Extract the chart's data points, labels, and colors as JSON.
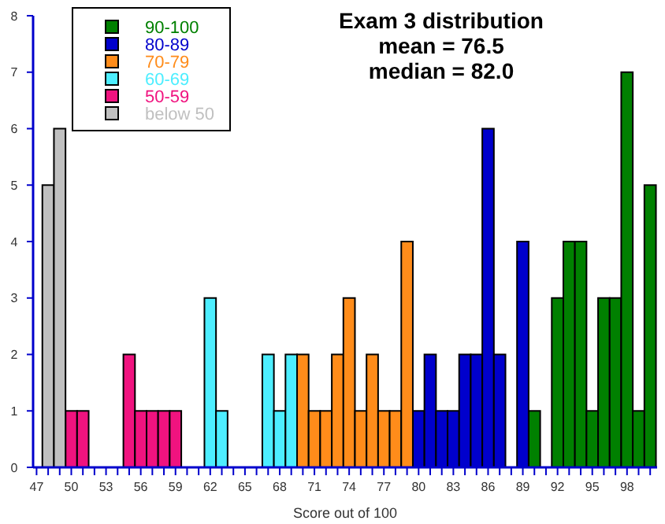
{
  "chart_data": {
    "type": "histogram",
    "title": "Exam 3 distribution",
    "annotations": [
      "mean = 76.5",
      "median = 82.0"
    ],
    "xlabel": "Score out of 100",
    "bins": [
      47.5,
      48.5,
      49.5,
      50.5,
      51.5,
      52.5,
      53.5,
      54.5,
      55.5,
      56.5,
      57.5,
      58.5,
      59.5,
      60.5,
      61.5,
      62.5,
      63.5,
      64.5,
      65.5,
      66.5,
      67.5,
      68.5,
      69.5,
      70.5,
      71.5,
      72.5,
      73.5,
      74.5,
      75.5,
      76.5,
      77.5,
      78.5,
      79.5,
      80.5,
      81.5,
      82.5,
      83.5,
      84.5,
      85.5,
      86.5,
      87.5,
      88.5,
      89.5,
      90.5,
      91.5,
      92.5,
      93.5,
      94.5,
      95.5,
      96.5,
      97.5,
      98.5,
      99.5,
      100.5
    ],
    "series": [
      {
        "name": "90-100",
        "color": "#008000",
        "values": [
          null,
          null,
          null,
          null,
          null,
          null,
          null,
          null,
          null,
          null,
          null,
          null,
          null,
          null,
          null,
          null,
          null,
          null,
          null,
          null,
          null,
          null,
          null,
          null,
          null,
          null,
          null,
          null,
          null,
          null,
          null,
          null,
          null,
          null,
          null,
          null,
          null,
          null,
          null,
          null,
          null,
          null,
          1,
          null,
          3,
          4,
          4,
          1,
          3,
          3,
          7,
          1,
          5
        ]
      },
      {
        "name": "80-89",
        "color": "#0000cc",
        "values": [
          null,
          null,
          null,
          null,
          null,
          null,
          null,
          null,
          null,
          null,
          null,
          null,
          null,
          null,
          null,
          null,
          null,
          null,
          null,
          null,
          null,
          null,
          null,
          null,
          null,
          null,
          null,
          null,
          null,
          null,
          null,
          null,
          1,
          2,
          1,
          1,
          2,
          2,
          6,
          2,
          null,
          4,
          null,
          null,
          null,
          null,
          null,
          null,
          null,
          null,
          null,
          null,
          null
        ]
      },
      {
        "name": "70-79",
        "color": "#ff8c1a",
        "values": [
          null,
          null,
          null,
          null,
          null,
          null,
          null,
          null,
          null,
          null,
          null,
          null,
          null,
          null,
          null,
          null,
          null,
          null,
          null,
          null,
          null,
          null,
          2,
          1,
          1,
          2,
          3,
          1,
          2,
          1,
          1,
          4,
          null,
          null,
          null,
          null,
          null,
          null,
          null,
          null,
          null,
          null,
          null,
          null,
          null,
          null,
          null,
          null,
          null,
          null,
          null,
          null,
          null
        ]
      },
      {
        "name": "60-69",
        "color": "#4deeff",
        "values": [
          null,
          null,
          null,
          null,
          null,
          null,
          null,
          null,
          null,
          null,
          null,
          null,
          null,
          null,
          3,
          1,
          null,
          null,
          null,
          2,
          1,
          2,
          null,
          null,
          null,
          null,
          null,
          null,
          null,
          null,
          null,
          null,
          null,
          null,
          null,
          null,
          null,
          null,
          null,
          null,
          null,
          null,
          null,
          null,
          null,
          null,
          null,
          null,
          null,
          null,
          null,
          null,
          null
        ]
      },
      {
        "name": "50-59",
        "color": "#f0137f",
        "values": [
          null,
          null,
          1,
          1,
          null,
          null,
          null,
          2,
          1,
          1,
          1,
          1,
          null,
          null,
          null,
          null,
          null,
          null,
          null,
          null,
          null,
          null,
          null,
          null,
          null,
          null,
          null,
          null,
          null,
          null,
          null,
          null,
          null,
          null,
          null,
          null,
          null,
          null,
          null,
          null,
          null,
          null,
          null,
          null,
          null,
          null,
          null,
          null,
          null,
          null,
          null,
          null,
          null
        ]
      },
      {
        "name": "below 50",
        "color": "#c0c0c0",
        "values": [
          5,
          6,
          null,
          null,
          null,
          null,
          null,
          null,
          null,
          null,
          null,
          null,
          null,
          null,
          null,
          null,
          null,
          null,
          null,
          null,
          null,
          null,
          null,
          null,
          null,
          null,
          null,
          null,
          null,
          null,
          null,
          null,
          null,
          null,
          null,
          null,
          null,
          null,
          null,
          null,
          null,
          null,
          null,
          null,
          null,
          null,
          null,
          null,
          null,
          null,
          null,
          null,
          null
        ]
      }
    ],
    "xlim": [
      46.7,
      100.6
    ],
    "ylim": [
      0,
      8
    ],
    "yticks": [
      0,
      1,
      2,
      3,
      4,
      5,
      6,
      7,
      8
    ],
    "xticks": [
      47,
      {
        "value": 48,
        "label": null
      },
      {
        "value": 49,
        "label": null
      },
      50,
      {
        "value": 51,
        "label": null
      },
      {
        "value": 52,
        "label": null
      },
      53,
      {
        "value": 54,
        "label": null
      },
      {
        "value": 55,
        "label": null
      },
      56,
      {
        "value": 57,
        "label": null
      },
      {
        "value": 58,
        "label": null
      },
      59,
      {
        "value": 60,
        "label": null
      },
      {
        "value": 61,
        "label": null
      },
      62,
      {
        "value": 63,
        "label": null
      },
      {
        "value": 64,
        "label": null
      },
      65,
      {
        "value": 66,
        "label": null
      },
      {
        "value": 67,
        "label": null
      },
      68,
      {
        "value": 69,
        "label": null
      },
      {
        "value": 70,
        "label": null
      },
      71,
      {
        "value": 72,
        "label": null
      },
      {
        "value": 73,
        "label": null
      },
      74,
      {
        "value": 75,
        "label": null
      },
      {
        "value": 76,
        "label": null
      },
      77,
      {
        "value": 78,
        "label": null
      },
      {
        "value": 79,
        "label": null
      },
      80,
      {
        "value": 81,
        "label": null
      },
      {
        "value": 82,
        "label": null
      },
      83,
      {
        "value": 84,
        "label": null
      },
      {
        "value": 85,
        "label": null
      },
      86,
      {
        "value": 87,
        "label": null
      },
      {
        "value": 88,
        "label": null
      },
      89,
      {
        "value": 90,
        "label": null
      },
      {
        "value": 91,
        "label": null
      },
      92,
      {
        "value": 93,
        "label": null
      },
      {
        "value": 94,
        "label": null
      },
      95,
      {
        "value": 96,
        "label": null
      },
      {
        "value": 97,
        "label": null
      },
      98,
      {
        "value": 99,
        "label": null
      },
      {
        "value": 100,
        "label": null
      }
    ],
    "legend": "top left",
    "grid": false
  }
}
